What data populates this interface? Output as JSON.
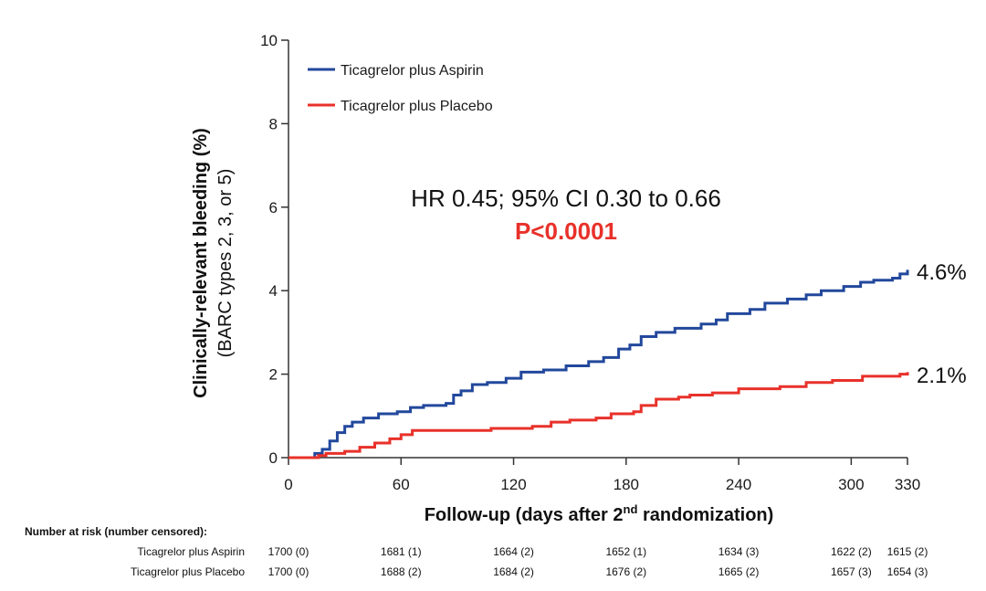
{
  "chart_data": {
    "type": "line",
    "subtype": "kaplan-meier",
    "ylabel_line1": "Clinically-relevant bleeding (%)",
    "ylabel_line2": "(BARC types 2, 3, or 5)",
    "xlabel_pre": "Follow-up (days after 2",
    "xlabel_sup": "nd",
    "xlabel_post": " randomization)",
    "xlim": [
      0,
      330
    ],
    "ylim": [
      0,
      10
    ],
    "x_ticks": [
      0,
      60,
      120,
      180,
      240,
      300,
      330
    ],
    "y_ticks": [
      0,
      2,
      4,
      6,
      8,
      10
    ],
    "annotation": "HR 0.45; 95% CI 0.30 to 0.66",
    "p_value": "P<0.0001",
    "p_color": "#e8312a",
    "series": [
      {
        "name": "Ticagrelor plus Aspirin",
        "color": "#22489c",
        "end_label": "4.6%",
        "points": [
          [
            0,
            0
          ],
          [
            12,
            0
          ],
          [
            14,
            0.1
          ],
          [
            18,
            0.2
          ],
          [
            22,
            0.4
          ],
          [
            26,
            0.6
          ],
          [
            30,
            0.75
          ],
          [
            34,
            0.85
          ],
          [
            40,
            0.95
          ],
          [
            48,
            1.05
          ],
          [
            58,
            1.1
          ],
          [
            65,
            1.2
          ],
          [
            72,
            1.25
          ],
          [
            84,
            1.3
          ],
          [
            88,
            1.5
          ],
          [
            92,
            1.6
          ],
          [
            98,
            1.75
          ],
          [
            106,
            1.8
          ],
          [
            116,
            1.9
          ],
          [
            124,
            2.05
          ],
          [
            136,
            2.1
          ],
          [
            148,
            2.2
          ],
          [
            160,
            2.3
          ],
          [
            168,
            2.4
          ],
          [
            176,
            2.6
          ],
          [
            182,
            2.7
          ],
          [
            188,
            2.9
          ],
          [
            196,
            3.0
          ],
          [
            206,
            3.1
          ],
          [
            220,
            3.2
          ],
          [
            228,
            3.3
          ],
          [
            234,
            3.45
          ],
          [
            246,
            3.55
          ],
          [
            254,
            3.7
          ],
          [
            266,
            3.8
          ],
          [
            276,
            3.9
          ],
          [
            284,
            4.0
          ],
          [
            296,
            4.1
          ],
          [
            305,
            4.2
          ],
          [
            312,
            4.25
          ],
          [
            322,
            4.3
          ],
          [
            326,
            4.4
          ],
          [
            330,
            4.5
          ]
        ]
      },
      {
        "name": "Ticagrelor plus Placebo",
        "color": "#e8312a",
        "end_label": "2.1%",
        "points": [
          [
            0,
            0
          ],
          [
            12,
            0
          ],
          [
            16,
            0.05
          ],
          [
            20,
            0.1
          ],
          [
            30,
            0.15
          ],
          [
            38,
            0.25
          ],
          [
            46,
            0.35
          ],
          [
            54,
            0.45
          ],
          [
            60,
            0.55
          ],
          [
            66,
            0.65
          ],
          [
            85,
            0.65
          ],
          [
            108,
            0.7
          ],
          [
            130,
            0.75
          ],
          [
            140,
            0.85
          ],
          [
            150,
            0.9
          ],
          [
            164,
            0.95
          ],
          [
            172,
            1.05
          ],
          [
            184,
            1.1
          ],
          [
            188,
            1.25
          ],
          [
            196,
            1.4
          ],
          [
            208,
            1.45
          ],
          [
            214,
            1.5
          ],
          [
            226,
            1.55
          ],
          [
            240,
            1.65
          ],
          [
            262,
            1.7
          ],
          [
            276,
            1.8
          ],
          [
            290,
            1.85
          ],
          [
            306,
            1.95
          ],
          [
            316,
            1.95
          ],
          [
            326,
            2.0
          ],
          [
            330,
            2.05
          ]
        ]
      }
    ]
  },
  "risk_table": {
    "title": "Number at risk (number censored):",
    "rows": [
      {
        "label": "Ticagrelor plus Aspirin",
        "values": [
          "1700 (0)",
          "1681 (1)",
          "1664 (2)",
          "1652 (1)",
          "1634 (3)",
          "1622 (2)",
          "1615 (2)"
        ]
      },
      {
        "label": "Ticagrelor plus Placebo",
        "values": [
          "1700 (0)",
          "1688 (2)",
          "1684 (2)",
          "1676 (2)",
          "1665 (2)",
          "1657 (3)",
          "1654 (3)"
        ]
      }
    ]
  }
}
